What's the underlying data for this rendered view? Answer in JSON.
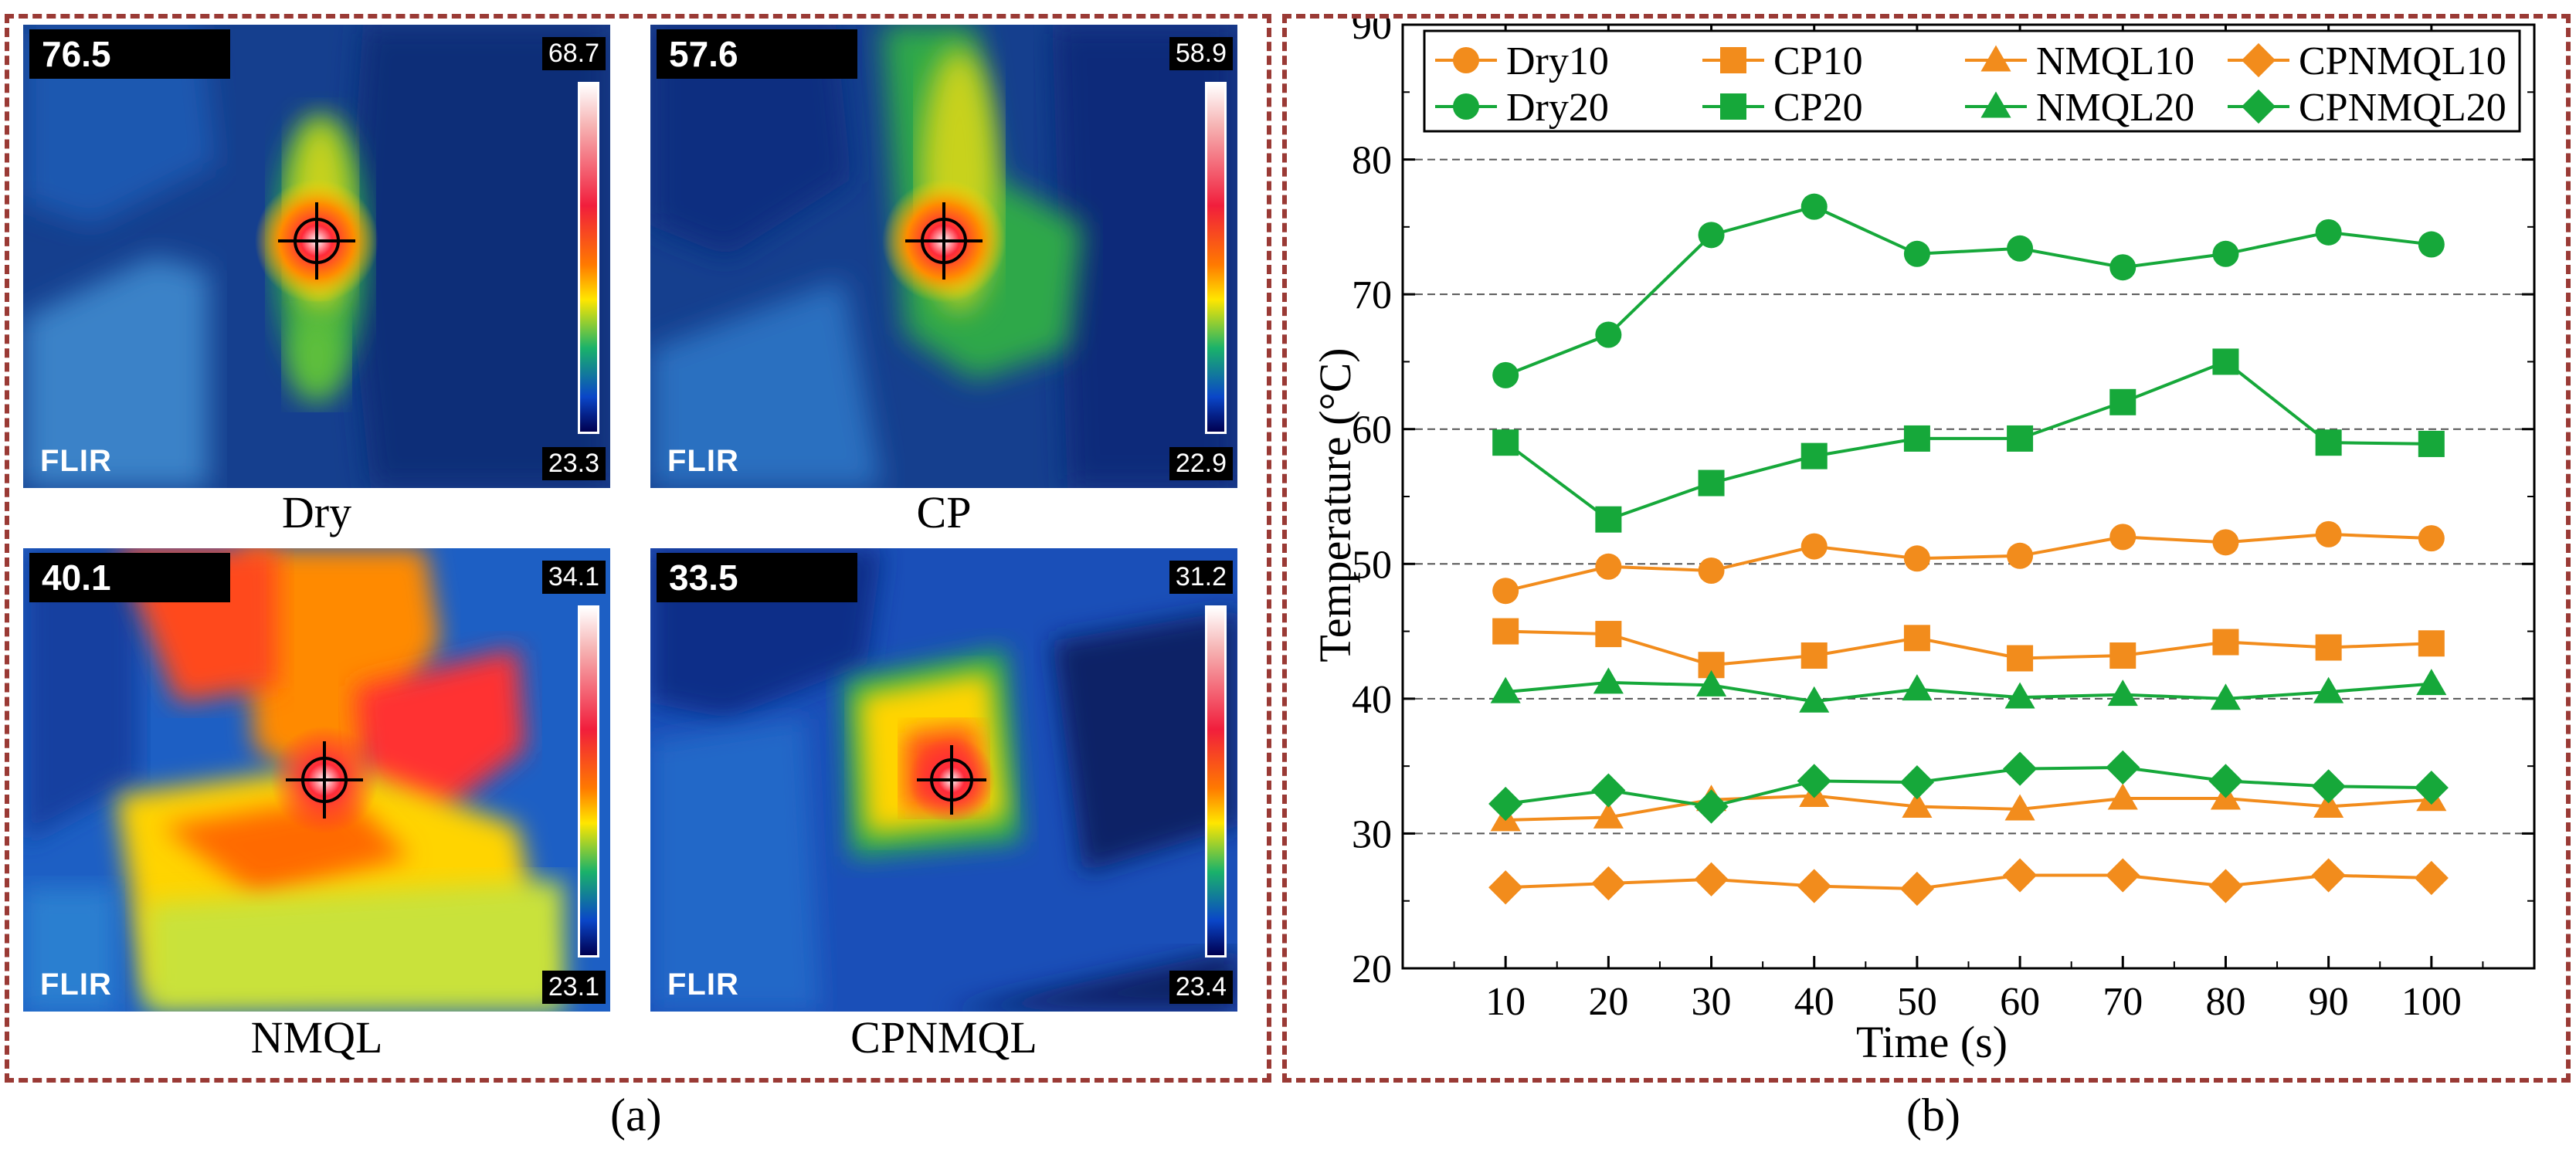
{
  "panel_a": {
    "caption": "(a)",
    "images": [
      {
        "label": "Dry",
        "readout": "76.5",
        "scale_max": "68.7",
        "scale_min": "23.3",
        "brand": "FLIR"
      },
      {
        "label": "CP",
        "readout": "57.6",
        "scale_max": "58.9",
        "scale_min": "22.9",
        "brand": "FLIR"
      },
      {
        "label": "NMQL",
        "readout": "40.1",
        "scale_max": "34.1",
        "scale_min": "23.1",
        "brand": "FLIR"
      },
      {
        "label": "CPNMQL",
        "readout": "33.5",
        "scale_max": "31.2",
        "scale_min": "23.4",
        "brand": "FLIR"
      }
    ]
  },
  "panel_b": {
    "caption": "(b)"
  },
  "chart_data": {
    "type": "line",
    "x": [
      10,
      20,
      30,
      40,
      50,
      60,
      70,
      80,
      90,
      100
    ],
    "xlabel": "Time (s)",
    "ylabel": "Temperature (°C)",
    "xlim": [
      0,
      110
    ],
    "ylim": [
      20,
      90
    ],
    "x_ticks": [
      10,
      20,
      30,
      40,
      50,
      60,
      70,
      80,
      90,
      100
    ],
    "y_ticks": [
      20,
      30,
      40,
      50,
      60,
      70,
      80,
      90
    ],
    "grid": "horizontal dashed",
    "legend_position": "top",
    "series": [
      {
        "name": "Dry10",
        "color": "#f28c1c",
        "marker": "circle",
        "values": [
          48.0,
          49.8,
          49.5,
          51.3,
          50.4,
          50.6,
          52.0,
          51.6,
          52.2,
          51.9
        ]
      },
      {
        "name": "CP10",
        "color": "#f28c1c",
        "marker": "square",
        "values": [
          45.0,
          44.8,
          42.5,
          43.2,
          44.5,
          43.0,
          43.2,
          44.2,
          43.8,
          44.1
        ]
      },
      {
        "name": "NMQL10",
        "color": "#f28c1c",
        "marker": "triangle",
        "values": [
          31.0,
          31.2,
          32.5,
          32.8,
          32.0,
          31.8,
          32.6,
          32.6,
          32.0,
          32.5
        ]
      },
      {
        "name": "CPNMQL10",
        "color": "#f28c1c",
        "marker": "diamond",
        "values": [
          26.0,
          26.3,
          26.6,
          26.1,
          25.9,
          26.9,
          26.9,
          26.1,
          26.9,
          26.7
        ]
      },
      {
        "name": "Dry20",
        "color": "#16a83a",
        "marker": "circle",
        "values": [
          64.0,
          67.0,
          74.4,
          76.5,
          73.0,
          73.4,
          72.0,
          73.0,
          74.6,
          73.7
        ]
      },
      {
        "name": "CP20",
        "color": "#16a83a",
        "marker": "square",
        "values": [
          59.0,
          53.3,
          56.0,
          58.0,
          59.3,
          59.3,
          62.0,
          65.0,
          59.0,
          58.9
        ]
      },
      {
        "name": "NMQL20",
        "color": "#16a83a",
        "marker": "triangle",
        "values": [
          40.5,
          41.2,
          41.0,
          39.8,
          40.7,
          40.1,
          40.3,
          40.0,
          40.5,
          41.1
        ]
      },
      {
        "name": "CPNMQL20",
        "color": "#16a83a",
        "marker": "diamond",
        "values": [
          32.2,
          33.2,
          32.0,
          33.9,
          33.8,
          34.8,
          34.9,
          33.9,
          33.5,
          33.4
        ]
      }
    ]
  }
}
